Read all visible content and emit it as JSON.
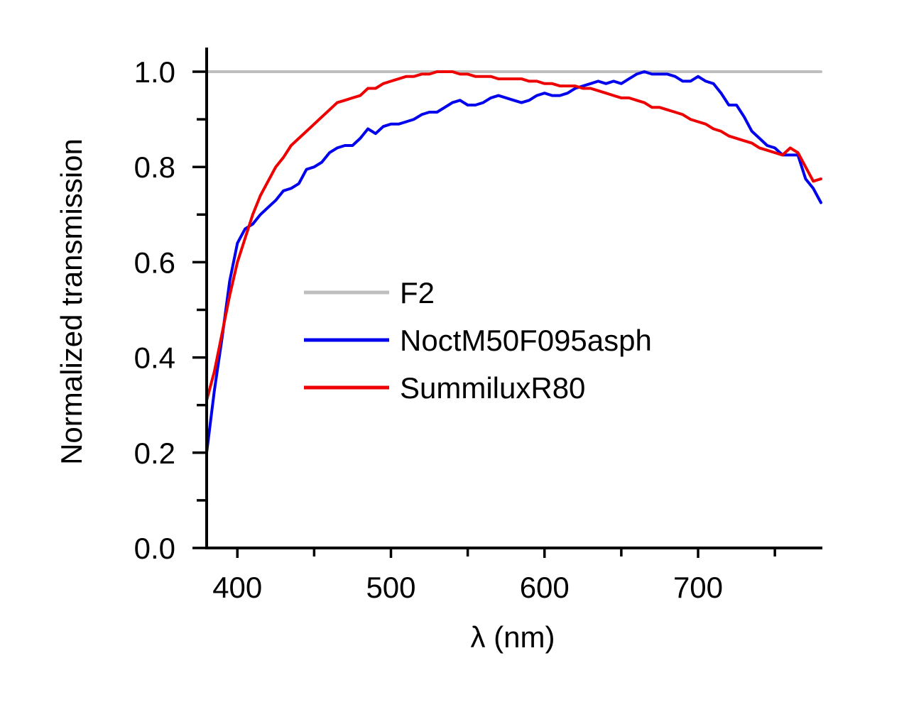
{
  "chart_data": {
    "type": "line",
    "title": "",
    "xlabel": "λ (nm)",
    "ylabel": "Normalized transmission",
    "xlim": [
      380,
      780
    ],
    "ylim": [
      0.0,
      1.0
    ],
    "x_ticks": [
      400,
      500,
      600,
      700
    ],
    "x_tick_labels": [
      "400",
      "500",
      "600",
      "700"
    ],
    "x_minor_ticks": [
      450,
      550,
      650,
      750
    ],
    "y_ticks": [
      0.0,
      0.2,
      0.4,
      0.6,
      0.8,
      1.0
    ],
    "y_tick_labels": [
      "0.0",
      "0.2",
      "0.4",
      "0.6",
      "0.8",
      "1.0"
    ],
    "y_minor_ticks": [
      0.1,
      0.3,
      0.5,
      0.7,
      0.9
    ],
    "grid": false,
    "legend_position": "center",
    "series": [
      {
        "name": "F2",
        "color": "#bebebe",
        "x": [
          380,
          780
        ],
        "y": [
          1.0,
          1.0
        ]
      },
      {
        "name": "NoctM50F095asph",
        "color": "#0000ee",
        "x": [
          380,
          385,
          390,
          395,
          400,
          405,
          410,
          415,
          420,
          425,
          430,
          435,
          440,
          445,
          450,
          455,
          460,
          465,
          470,
          475,
          480,
          485,
          490,
          495,
          500,
          505,
          510,
          515,
          520,
          525,
          530,
          535,
          540,
          545,
          550,
          555,
          560,
          565,
          570,
          575,
          580,
          585,
          590,
          595,
          600,
          605,
          610,
          615,
          620,
          625,
          630,
          635,
          640,
          645,
          650,
          655,
          660,
          665,
          670,
          675,
          680,
          685,
          690,
          695,
          700,
          705,
          710,
          715,
          720,
          725,
          730,
          735,
          740,
          745,
          750,
          755,
          760,
          765,
          770,
          775,
          780
        ],
        "y": [
          0.2,
          0.33,
          0.44,
          0.56,
          0.64,
          0.67,
          0.68,
          0.7,
          0.715,
          0.73,
          0.75,
          0.755,
          0.765,
          0.795,
          0.8,
          0.81,
          0.83,
          0.84,
          0.845,
          0.845,
          0.86,
          0.88,
          0.87,
          0.885,
          0.89,
          0.89,
          0.895,
          0.9,
          0.91,
          0.915,
          0.915,
          0.925,
          0.935,
          0.94,
          0.93,
          0.93,
          0.935,
          0.945,
          0.95,
          0.945,
          0.94,
          0.935,
          0.94,
          0.95,
          0.955,
          0.95,
          0.95,
          0.955,
          0.965,
          0.97,
          0.975,
          0.98,
          0.975,
          0.98,
          0.975,
          0.985,
          0.995,
          1.0,
          0.995,
          0.995,
          0.995,
          0.99,
          0.98,
          0.98,
          0.99,
          0.98,
          0.975,
          0.955,
          0.93,
          0.93,
          0.905,
          0.875,
          0.86,
          0.845,
          0.84,
          0.825,
          0.825,
          0.825,
          0.775,
          0.755,
          0.725
        ]
      },
      {
        "name": "SummiluxR80",
        "color": "#ee0000",
        "x": [
          380,
          385,
          390,
          395,
          400,
          405,
          410,
          415,
          420,
          425,
          430,
          435,
          440,
          445,
          450,
          455,
          460,
          465,
          470,
          475,
          480,
          485,
          490,
          495,
          500,
          505,
          510,
          515,
          520,
          525,
          530,
          535,
          540,
          545,
          550,
          555,
          560,
          565,
          570,
          575,
          580,
          585,
          590,
          595,
          600,
          605,
          610,
          615,
          620,
          625,
          630,
          635,
          640,
          645,
          650,
          655,
          660,
          665,
          670,
          675,
          680,
          685,
          690,
          695,
          700,
          705,
          710,
          715,
          720,
          725,
          730,
          735,
          740,
          745,
          750,
          755,
          760,
          765,
          770,
          775,
          780
        ],
        "y": [
          0.31,
          0.37,
          0.45,
          0.53,
          0.6,
          0.65,
          0.7,
          0.74,
          0.77,
          0.8,
          0.82,
          0.845,
          0.86,
          0.875,
          0.89,
          0.905,
          0.92,
          0.935,
          0.94,
          0.945,
          0.95,
          0.965,
          0.965,
          0.975,
          0.98,
          0.985,
          0.99,
          0.99,
          0.995,
          0.995,
          1.0,
          1.0,
          1.0,
          0.995,
          0.995,
          0.99,
          0.99,
          0.99,
          0.985,
          0.985,
          0.985,
          0.985,
          0.98,
          0.98,
          0.975,
          0.975,
          0.97,
          0.97,
          0.97,
          0.965,
          0.965,
          0.96,
          0.955,
          0.95,
          0.945,
          0.945,
          0.94,
          0.935,
          0.925,
          0.925,
          0.92,
          0.915,
          0.91,
          0.9,
          0.895,
          0.89,
          0.88,
          0.875,
          0.865,
          0.86,
          0.855,
          0.85,
          0.84,
          0.835,
          0.83,
          0.825,
          0.84,
          0.83,
          0.8,
          0.77,
          0.775
        ]
      }
    ]
  }
}
